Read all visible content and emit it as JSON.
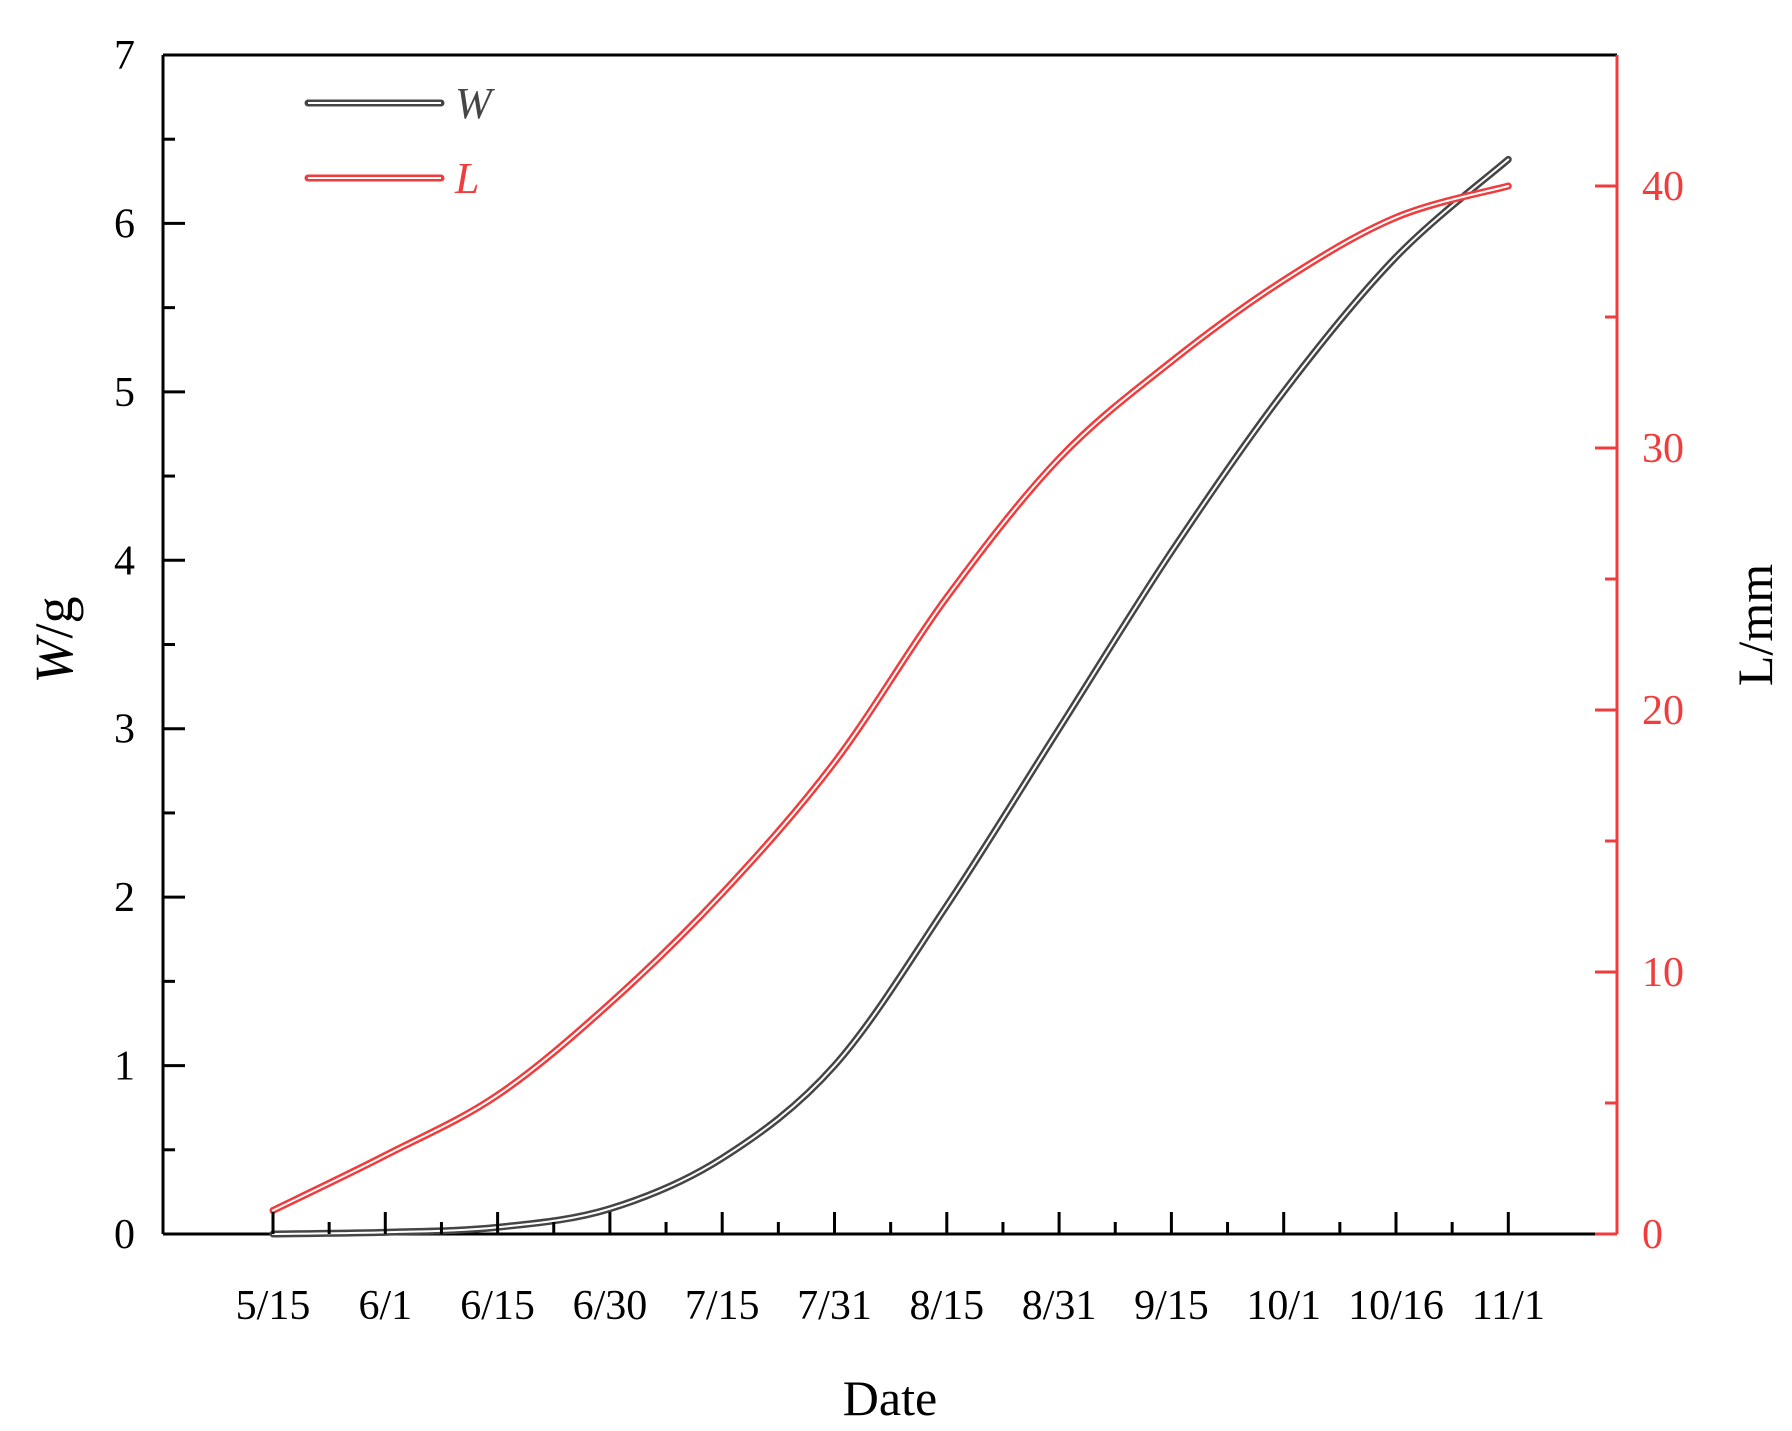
{
  "chart_data": {
    "type": "line",
    "title": "",
    "xlabel": "Date",
    "ylabel_left": "W/g",
    "ylabel_left_italic": "W",
    "ylabel_left_unit": "/g",
    "ylabel_right": "L/mm",
    "categories": [
      "5/15",
      "6/1",
      "6/15",
      "6/30",
      "7/15",
      "7/31",
      "8/15",
      "8/31",
      "9/15",
      "10/1",
      "10/16",
      "11/1"
    ],
    "ylim_left": [
      0,
      7
    ],
    "yticks_left": [
      "0",
      "1",
      "2",
      "3",
      "4",
      "5",
      "6",
      "7"
    ],
    "ylim_right": [
      0,
      45
    ],
    "yticks_right": [
      "0",
      "10",
      "20",
      "30",
      "40"
    ],
    "grid": false,
    "legend_position": "top-left",
    "series": [
      {
        "name": "W",
        "axis": "left",
        "color": "#454545",
        "values": [
          0.0,
          0.01,
          0.04,
          0.15,
          0.45,
          1.0,
          1.95,
          3.0,
          4.05,
          5.0,
          5.8,
          6.38
        ]
      },
      {
        "name": "L",
        "axis": "right",
        "color": "#f03c3c",
        "values": [
          0.9,
          3.0,
          5.3,
          8.8,
          13.0,
          18.0,
          24.3,
          29.6,
          33.3,
          36.4,
          38.8,
          40.0
        ]
      }
    ],
    "colors": {
      "axis_left": "#000000",
      "axis_right": "#f03c3c"
    }
  }
}
